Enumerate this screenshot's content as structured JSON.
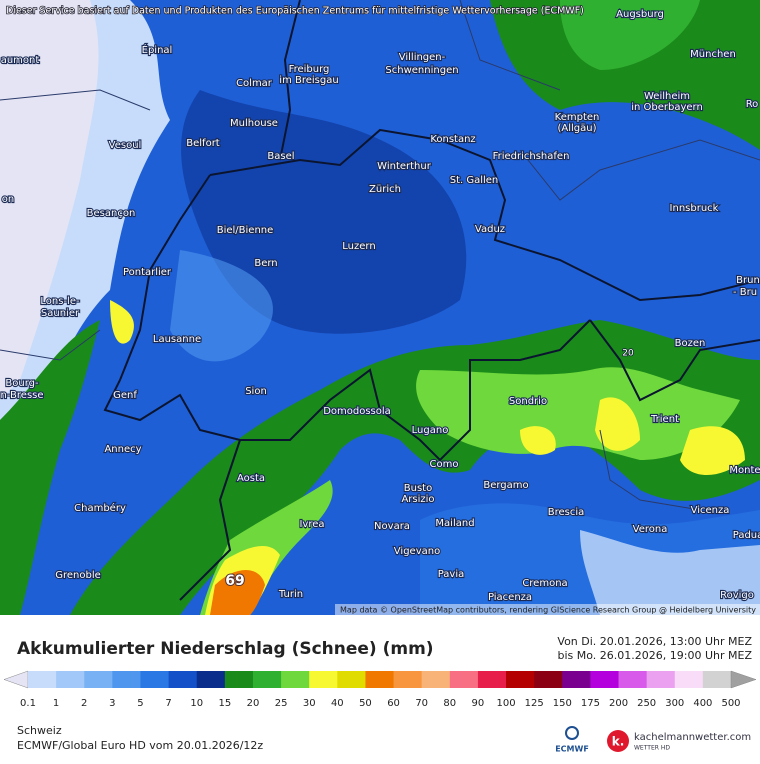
{
  "header": {
    "notice": "Dieser Service basiert auf Daten und Produkten des Europäischen Zentrums für mittelfristige Wettervorhersage (ECMWF)",
    "attribution": "Map data © OpenStreetMap contributors, rendering GIScience Research Group @ Heidelberg University"
  },
  "map": {
    "labels": [
      "Épinal",
      "Colmar",
      "Freiburg",
      "im Breisgau",
      "Villingen-",
      "Schwenningen",
      "Augsburg",
      "München",
      "Weilheim",
      "in Oberbayern",
      "Kempten",
      "(Allgäu)",
      "Mulhouse",
      "Belfort",
      "Vesoul",
      "Basel",
      "Konstanz",
      "Friedrichshafen",
      "Winterthur",
      "St. Gallen",
      "Zürich",
      "Innsbruck",
      "Besançon",
      "Biel/Bienne",
      "Vaduz",
      "Luzern",
      "Bern",
      "Pontarlier",
      "Lons-le-",
      "Saunier",
      "Bozen",
      "Lausanne",
      "Sion",
      "Sondrio",
      "Domodossola",
      "Genf",
      "Trient",
      "Lugano",
      "Annecy",
      "Como",
      "Aosta",
      "Busto",
      "Arsizio",
      "Bergamo",
      "Chambéry",
      "Brescia",
      "Ivrea",
      "Novara",
      "Mailand",
      "Verona",
      "Vicenza",
      "Vigevano",
      "Grenoble",
      "Pavia",
      "Cremona",
      "Turin",
      "Piacenza",
      "Rovigo",
      "aumont",
      "Ro",
      "on",
      "Brun",
      "- Bru",
      "Bourg-",
      "n-Bresse",
      "Monte",
      "Padua"
    ],
    "contour_labels": [
      "20",
      "69"
    ]
  },
  "legend": {
    "title": "Akkumulierter Niederschlag (Schnee) (mm)",
    "period_from": "Von Di. 20.01.2026, 13:00 Uhr MEZ",
    "period_to": "bis Mo. 26.01.2026, 19:00 Uhr MEZ",
    "ticks": [
      0.1,
      1,
      2,
      3,
      5,
      7,
      10,
      15,
      20,
      25,
      30,
      40,
      50,
      60,
      70,
      80,
      90,
      100,
      125,
      150,
      175,
      200,
      250,
      300,
      400,
      500
    ],
    "colors": [
      "#e4e4f4",
      "#c6dcfa",
      "#a2c8fa",
      "#78b2f4",
      "#4e96ee",
      "#2a78e4",
      "#1450c8",
      "#0a2d8c",
      "#1a8a1a",
      "#30b030",
      "#6ed83c",
      "#f8f832",
      "#e0dc00",
      "#f07800",
      "#f89640",
      "#f8b478",
      "#f86e82",
      "#e81e4a",
      "#b40000",
      "#8c0014",
      "#7a0090",
      "#b400dc",
      "#d75aeb",
      "#eba0f0",
      "#f8dcf8",
      "#d2d2d2",
      "#a0a0a0"
    ]
  },
  "footer": {
    "region": "Schweiz",
    "model": "ECMWF/Global Euro HD vom  20.01.2026/12z",
    "logo_ecmwf": "ECMWF",
    "logo_site": "kachelmannwetter.com",
    "logo_sub": "WETTER HD"
  }
}
